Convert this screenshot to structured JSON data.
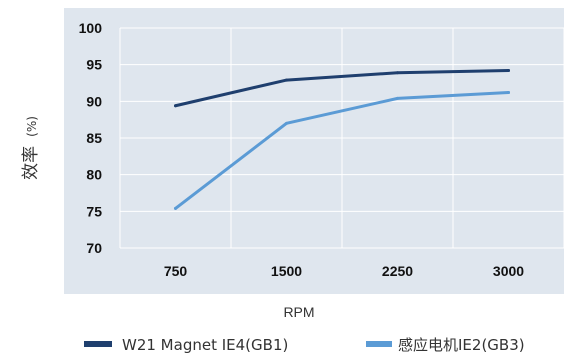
{
  "chart_data": {
    "type": "line",
    "categories": [
      "750",
      "1500",
      "2250",
      "3000"
    ],
    "ylabel_main": "效率",
    "ylabel_unit": "(%)",
    "xlabel": "RPM",
    "ylim": [
      70,
      100
    ],
    "yticks": [
      "70",
      "75",
      "80",
      "85",
      "90",
      "95",
      "100"
    ],
    "grid": true,
    "legend_position": "bottom",
    "series": [
      {
        "name": "W21 Magnet IE4(GB1)",
        "color": "#1f3f6e",
        "values": [
          89.4,
          92.9,
          93.9,
          94.2
        ]
      },
      {
        "name": "感应电机IE2(GB3)",
        "color": "#5b9bd5",
        "values": [
          75.4,
          87.0,
          90.4,
          91.2
        ]
      }
    ]
  },
  "colors": {
    "plot_background": "#dfe6ee",
    "gridline": "#ffffff"
  }
}
